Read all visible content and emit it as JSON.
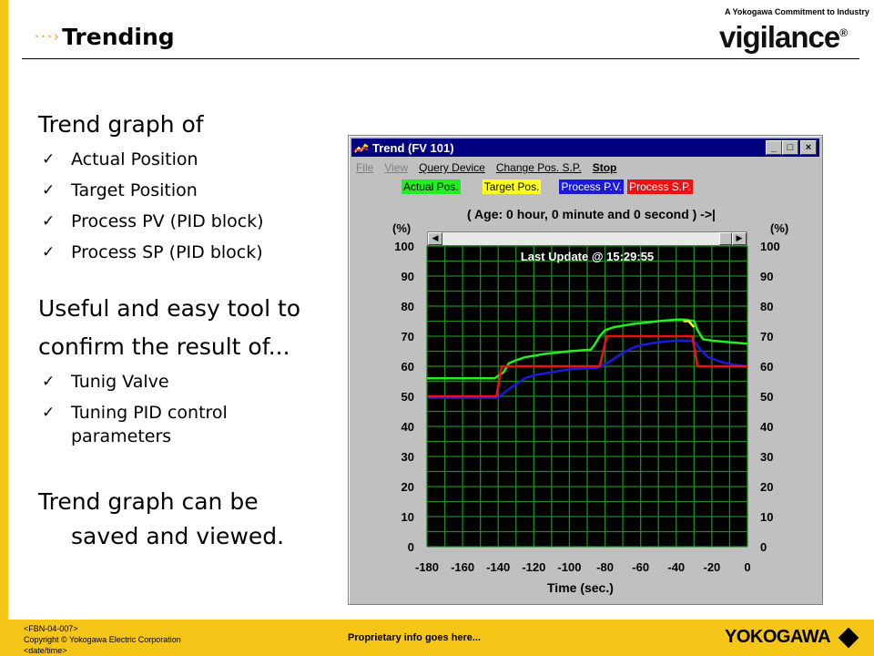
{
  "header": {
    "title": "Trending"
  },
  "logo": {
    "tagline": "A Yokogawa Commitment to Industry",
    "wordmark": "vigilance",
    "reg_mark": "®"
  },
  "content": {
    "heading1": "Trend graph of",
    "items1": [
      "Actual Position",
      "Target Position",
      "Process PV (PID block)",
      "Process SP (PID block)"
    ],
    "heading2_line1": "Useful and easy tool to",
    "heading2_line2": "confirm the result of...",
    "items2": [
      "Tunig Valve",
      "Tuning PID control parameters"
    ],
    "heading3_line1": "Trend graph can be",
    "heading3_line2": "saved and viewed.",
    "checkmark": "✓"
  },
  "window": {
    "title": "Trend (FV 101)",
    "buttons": {
      "minimize": "_",
      "maximize": "□",
      "close": "×"
    },
    "menu": [
      {
        "label": "File",
        "enabled": false
      },
      {
        "label": "View",
        "enabled": false
      },
      {
        "label": "Query Device",
        "enabled": true
      },
      {
        "label": "Change Pos. S.P.",
        "enabled": true
      },
      {
        "label": "Stop",
        "enabled": true,
        "bold": true
      }
    ],
    "legend": [
      {
        "label": "Actual Pos.",
        "color": "#22ee22",
        "text_color": "#000000"
      },
      {
        "label": "Target Pos.",
        "color": "#ffff22",
        "text_color": "#000000"
      },
      {
        "label": "Process P.V.",
        "color": "#1a1adc",
        "text_color": "#ffffff"
      },
      {
        "label": "Process S.P.",
        "color": "#ee1111",
        "text_color": "#ffffff"
      }
    ],
    "age_text": "( Age:  0 hour, 0 minute and 0 second ) ->|",
    "last_update": "Last Update @ 15:29:55",
    "axis_unit": "(%)",
    "xlabel": "Time (sec.)",
    "scroll_left": "◀",
    "scroll_right": "▶"
  },
  "chart_data": {
    "type": "line",
    "xlabel": "Time (sec.)",
    "ylabel": "(%)",
    "xlim": [
      -180,
      0
    ],
    "ylim": [
      0,
      100
    ],
    "x_ticks": [
      -180,
      -160,
      -140,
      -120,
      -100,
      -80,
      -60,
      -40,
      -20,
      0
    ],
    "y_ticks": [
      100,
      90,
      80,
      70,
      60,
      50,
      40,
      30,
      20,
      10,
      0
    ],
    "grid": true,
    "background": "#000000",
    "grid_color": "#1f8a1f",
    "series": [
      {
        "name": "Actual Pos.",
        "color": "#22ee22",
        "x": [
          -180,
          -142,
          -137,
          -134,
          -130,
          -125,
          -115,
          -100,
          -88,
          -86,
          -83,
          -80,
          -75,
          -65,
          -50,
          -40,
          -35,
          -30,
          -28,
          -25,
          -20,
          -10,
          0
        ],
        "y": [
          56,
          56,
          58,
          61,
          62,
          63,
          64,
          65,
          65.5,
          67,
          70,
          72,
          73,
          74,
          75,
          75.5,
          75.5,
          75,
          72,
          69,
          68.5,
          68,
          67.5
        ]
      },
      {
        "name": "Target Pos.",
        "color": "#ffff22",
        "x": [
          -36,
          -33,
          -30
        ],
        "y": [
          75,
          75,
          73
        ]
      },
      {
        "name": "Process P.V.",
        "color": "#1a1adc",
        "x": [
          -180,
          -140,
          -135,
          -130,
          -125,
          -120,
          -110,
          -100,
          -85,
          -80,
          -75,
          -70,
          -65,
          -60,
          -50,
          -40,
          -30,
          -27,
          -22,
          -15,
          -8,
          0
        ],
        "y": [
          49.5,
          49.5,
          52,
          54,
          56,
          57,
          58,
          59,
          59.5,
          60.5,
          62.5,
          64.5,
          66,
          67,
          68,
          68.5,
          68.5,
          66,
          63,
          61.5,
          60.5,
          60
        ]
      },
      {
        "name": "Process S.P.",
        "color": "#ee1111",
        "x": [
          -180,
          -141,
          -138,
          -83,
          -79,
          -31,
          -28,
          0
        ],
        "y": [
          50,
          50,
          60,
          60,
          70,
          70,
          60,
          60
        ]
      }
    ]
  },
  "footer": {
    "line1": "<FBN-04-007>",
    "line2": "Copyright © Yokogawa Electric Corporation",
    "line3": "<date/time>",
    "proprietary": "Proprietary info goes here...",
    "brand": "YOKOGAWA"
  }
}
